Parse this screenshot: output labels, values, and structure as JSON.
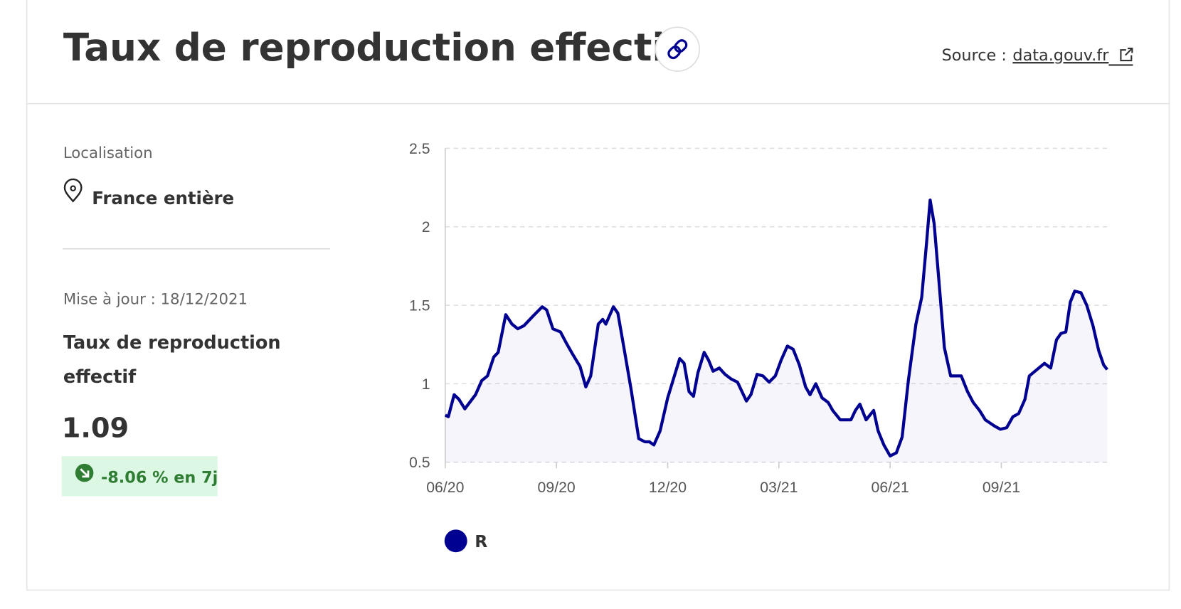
{
  "header": {
    "title": "Taux de reproduction effectif",
    "source_label": "Source :",
    "source_link": "data.gouv.fr"
  },
  "sidebar": {
    "location_label": "Localisation",
    "location": "France entière",
    "updated": "Mise à jour : 18/12/2021",
    "indicator": [
      "Taux de reproduction",
      "effectif"
    ],
    "value": "1.09",
    "change": "-8.06 % en 7j"
  },
  "chart_data": {
    "type": "line",
    "x": [
      2020.417,
      2020.424,
      2020.437,
      2020.448,
      2020.461,
      2020.485,
      2020.499,
      2020.512,
      2020.526,
      2020.536,
      2020.553,
      2020.567,
      2020.58,
      2020.594,
      2020.614,
      2020.635,
      2020.645,
      2020.659,
      2020.676,
      2020.689,
      2020.703,
      2020.72,
      2020.733,
      2020.744,
      2020.761,
      2020.771,
      2020.778,
      2020.795,
      2020.805,
      2020.818,
      2020.835,
      2020.852,
      2020.866,
      2020.876,
      2020.886,
      2020.9,
      2020.917,
      2020.931,
      2020.944,
      2020.954,
      2020.965,
      2020.975,
      2020.985,
      2020.999,
      2021.009,
      2021.019,
      2021.033,
      2021.046,
      2021.06,
      2021.074,
      2021.084,
      2021.094,
      2021.104,
      2021.118,
      2021.131,
      2021.145,
      2021.159,
      2021.172,
      2021.186,
      2021.199,
      2021.213,
      2021.227,
      2021.237,
      2021.25,
      2021.264,
      2021.278,
      2021.288,
      2021.305,
      2021.318,
      2021.329,
      2021.339,
      2021.349,
      2021.363,
      2021.38,
      2021.39,
      2021.403,
      2021.417,
      2021.431,
      2021.444,
      2021.458,
      2021.475,
      2021.488,
      2021.499,
      2021.507,
      2021.516,
      2021.526,
      2021.539,
      2021.553,
      2021.567,
      2021.577,
      2021.591,
      2021.604,
      2021.618,
      2021.631,
      2021.652,
      2021.665,
      2021.679,
      2021.693,
      2021.706,
      2021.72,
      2021.73,
      2021.747,
      2021.764,
      2021.778,
      2021.791,
      2021.801,
      2021.812,
      2021.822,
      2021.832,
      2021.846,
      2021.859,
      2021.873,
      2021.886,
      2021.897,
      2021.905
    ],
    "series": [
      {
        "name": "R",
        "color": "#000091",
        "values": [
          0.8,
          0.79,
          0.93,
          0.9,
          0.84,
          0.93,
          1.02,
          1.05,
          1.17,
          1.2,
          1.44,
          1.38,
          1.35,
          1.37,
          1.43,
          1.49,
          1.47,
          1.35,
          1.33,
          1.26,
          1.19,
          1.11,
          0.98,
          1.05,
          1.38,
          1.41,
          1.38,
          1.49,
          1.45,
          1.24,
          0.96,
          0.65,
          0.63,
          0.63,
          0.61,
          0.7,
          0.91,
          1.04,
          1.16,
          1.13,
          0.95,
          0.92,
          1.07,
          1.2,
          1.15,
          1.08,
          1.1,
          1.06,
          1.03,
          1.01,
          0.95,
          0.89,
          0.93,
          1.06,
          1.05,
          1.01,
          1.05,
          1.15,
          1.24,
          1.22,
          1.12,
          0.98,
          0.93,
          1.0,
          0.91,
          0.88,
          0.83,
          0.77,
          0.77,
          0.77,
          0.83,
          0.87,
          0.77,
          0.83,
          0.7,
          0.61,
          0.54,
          0.56,
          0.66,
          1.02,
          1.38,
          1.55,
          1.9,
          2.17,
          2.02,
          1.68,
          1.23,
          1.05,
          1.05,
          1.05,
          0.95,
          0.88,
          0.83,
          0.77,
          0.73,
          0.71,
          0.72,
          0.79,
          0.81,
          0.9,
          1.05,
          1.09,
          1.13,
          1.1,
          1.28,
          1.32,
          1.33,
          1.52,
          1.59,
          1.58,
          1.5,
          1.37,
          1.21,
          1.12,
          1.09
        ]
      }
    ],
    "xlim": [
      2020.417,
      2021.905
    ],
    "xticks": [
      {
        "value": 2020.417,
        "label": "06/20"
      },
      {
        "value": 2020.667,
        "label": "09/20"
      },
      {
        "value": 2020.917,
        "label": "12/20"
      },
      {
        "value": 2021.167,
        "label": "03/21"
      },
      {
        "value": 2021.417,
        "label": "06/21"
      },
      {
        "value": 2021.667,
        "label": "09/21"
      }
    ],
    "ylim": [
      0.5,
      2.5
    ],
    "yticks": [
      0.5,
      1,
      1.5,
      2,
      2.5
    ],
    "grid": true,
    "area": true
  }
}
